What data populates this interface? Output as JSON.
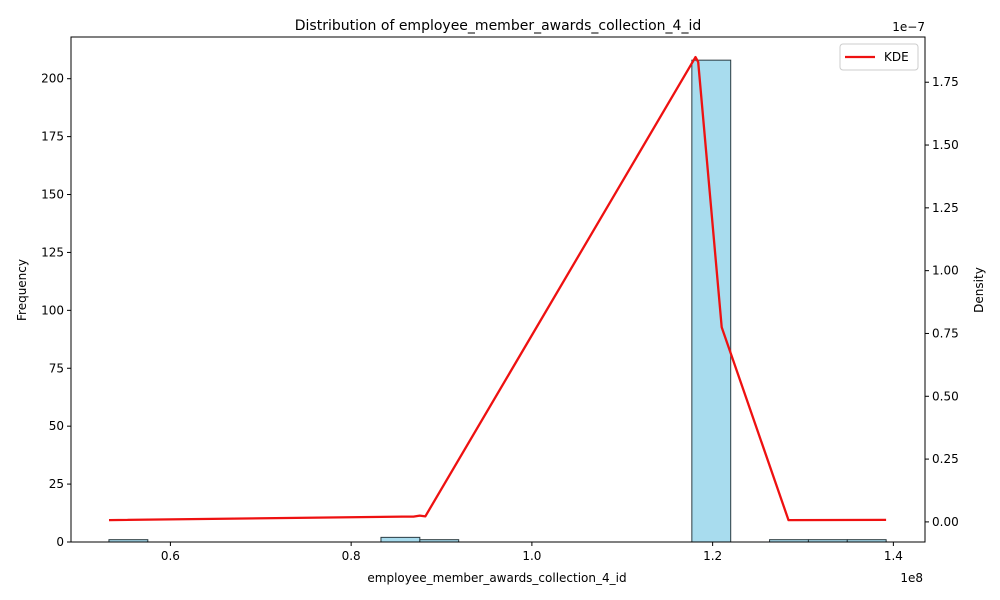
{
  "chart_data": {
    "type": "bar",
    "title": "Distribution of employee_member_awards_collection_4_id",
    "xlabel": "employee_member_awards_collection_4_id",
    "ylabel": "Frequency",
    "y2label": "Density",
    "x_scale_label": "1e8",
    "y2_scale_label": "1e−7",
    "xlim": [
      0.49,
      1.435
    ],
    "ylim": [
      0,
      218
    ],
    "y2lim": [
      -0.08,
      1.93
    ],
    "xticks": [
      0.6,
      0.8,
      1.0,
      1.2,
      1.4
    ],
    "xtick_labels": [
      "0.6",
      "0.8",
      "1.0",
      "1.2",
      "1.4"
    ],
    "yticks": [
      0,
      25,
      50,
      75,
      100,
      125,
      150,
      175,
      200
    ],
    "ytick_labels": [
      "0",
      "25",
      "50",
      "75",
      "100",
      "125",
      "150",
      "175",
      "200"
    ],
    "y2ticks": [
      0.0,
      0.25,
      0.5,
      0.75,
      1.0,
      1.25,
      1.5,
      1.75
    ],
    "y2tick_labels": [
      "0.00",
      "0.25",
      "0.50",
      "0.75",
      "1.00",
      "1.25",
      "1.50",
      "1.75"
    ],
    "bins": [
      {
        "x0": 0.532,
        "x1": 0.575,
        "count": 1
      },
      {
        "x0": 0.575,
        "x1": 0.618,
        "count": 0
      },
      {
        "x0": 0.618,
        "x1": 0.661,
        "count": 0
      },
      {
        "x0": 0.661,
        "x1": 0.704,
        "count": 0
      },
      {
        "x0": 0.704,
        "x1": 0.747,
        "count": 0
      },
      {
        "x0": 0.747,
        "x1": 0.79,
        "count": 0
      },
      {
        "x0": 0.79,
        "x1": 0.833,
        "count": 0
      },
      {
        "x0": 0.833,
        "x1": 0.876,
        "count": 2
      },
      {
        "x0": 0.876,
        "x1": 0.919,
        "count": 1
      },
      {
        "x0": 0.919,
        "x1": 0.962,
        "count": 0
      },
      {
        "x0": 0.962,
        "x1": 1.005,
        "count": 0
      },
      {
        "x0": 1.005,
        "x1": 1.048,
        "count": 0
      },
      {
        "x0": 1.048,
        "x1": 1.091,
        "count": 0
      },
      {
        "x0": 1.091,
        "x1": 1.134,
        "count": 0
      },
      {
        "x0": 1.134,
        "x1": 1.177,
        "count": 0
      },
      {
        "x0": 1.177,
        "x1": 1.22,
        "count": 208
      },
      {
        "x0": 1.22,
        "x1": 1.263,
        "count": 0
      },
      {
        "x0": 1.263,
        "x1": 1.306,
        "count": 1
      },
      {
        "x0": 1.306,
        "x1": 1.349,
        "count": 1
      },
      {
        "x0": 1.349,
        "x1": 1.392,
        "count": 1
      }
    ],
    "bar_color": "#a8dcee",
    "bar_edge_color": "#2b3b40",
    "kde": {
      "name": "KDE",
      "color": "#ee1111",
      "x": [
        0.532,
        0.857,
        0.869,
        0.876,
        0.882,
        1.181,
        1.184,
        1.21,
        1.284,
        1.392
      ],
      "y": [
        0.007,
        0.021,
        0.021,
        0.025,
        0.022,
        1.85,
        1.83,
        0.775,
        0.007,
        0.008
      ]
    },
    "legend": {
      "position": "top-right",
      "entries": [
        "KDE"
      ]
    }
  }
}
